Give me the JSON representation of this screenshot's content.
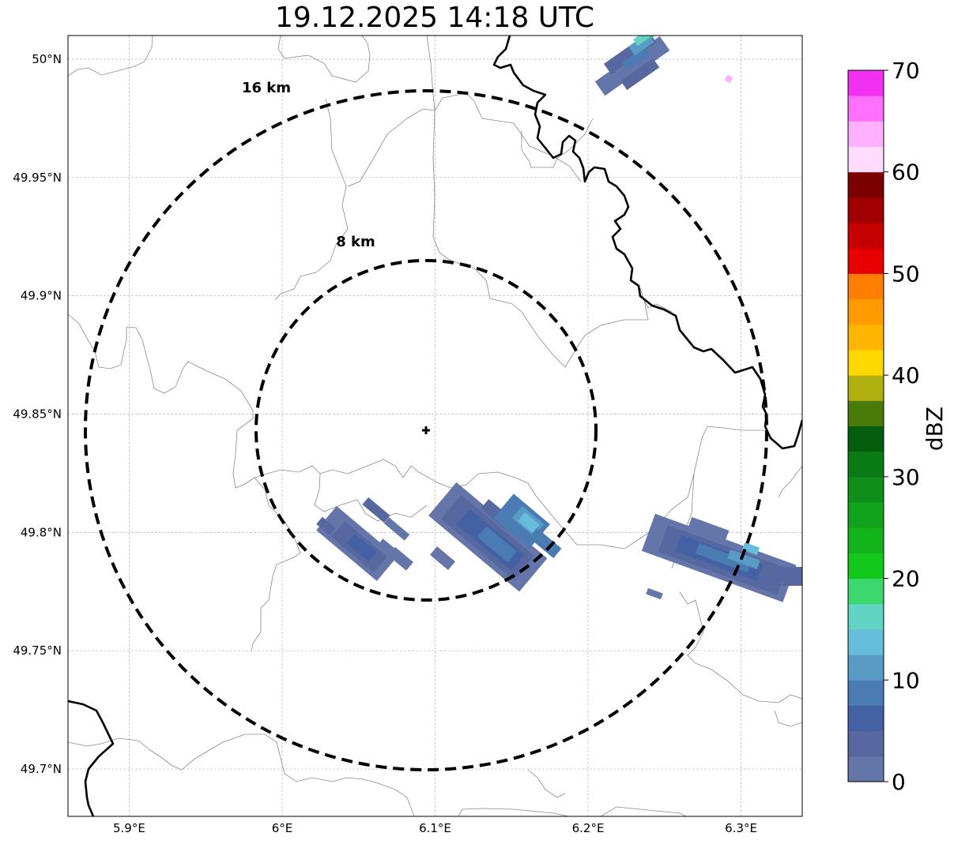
{
  "title": "19.12.2025 14:18 UTC",
  "map": {
    "lon_range": [
      5.86,
      6.34
    ],
    "lat_range": [
      49.68,
      50.01
    ],
    "lon_ticks": [
      5.9,
      6.0,
      6.1,
      6.2,
      6.3
    ],
    "lon_tick_labels": [
      "5.9°E",
      "6°E",
      "6.1°E",
      "6.2°E",
      "6.3°E"
    ],
    "lat_ticks": [
      50.0,
      49.95,
      49.9,
      49.85,
      49.8,
      49.75,
      49.7
    ],
    "lat_tick_labels": [
      "50°N",
      "49.95°N",
      "49.9°N",
      "49.85°N",
      "49.8°N",
      "49.75°N",
      "49.7°N"
    ],
    "grid": true,
    "radar_site": {
      "lon": 6.094,
      "lat": 49.843,
      "marker": "plus"
    },
    "range_rings": [
      {
        "radius_km": 8,
        "label": "8 km"
      },
      {
        "radius_km": 16,
        "label": "16 km"
      }
    ]
  },
  "colorbar": {
    "label": "dBZ",
    "min": 0,
    "max": 70,
    "tick_labels": [
      "0",
      "10",
      "20",
      "30",
      "40",
      "50",
      "60",
      "70"
    ],
    "colors": [
      "#6475aa",
      "#56689f",
      "#4461a4",
      "#4a7bb3",
      "#5a9bc6",
      "#66bcdb",
      "#62d4c4",
      "#3dd76f",
      "#13c81a",
      "#12b41a",
      "#11a31b",
      "#0f8f1a",
      "#0b7b15",
      "#055e0d",
      "#4a7a0a",
      "#afb010",
      "#ffd800",
      "#ffb400",
      "#ff9a00",
      "#ff7d00",
      "#e80000",
      "#c40000",
      "#a00000",
      "#7b0000",
      "#ffdcff",
      "#ffb0ff",
      "#ff70ff",
      "#f230f2"
    ]
  }
}
